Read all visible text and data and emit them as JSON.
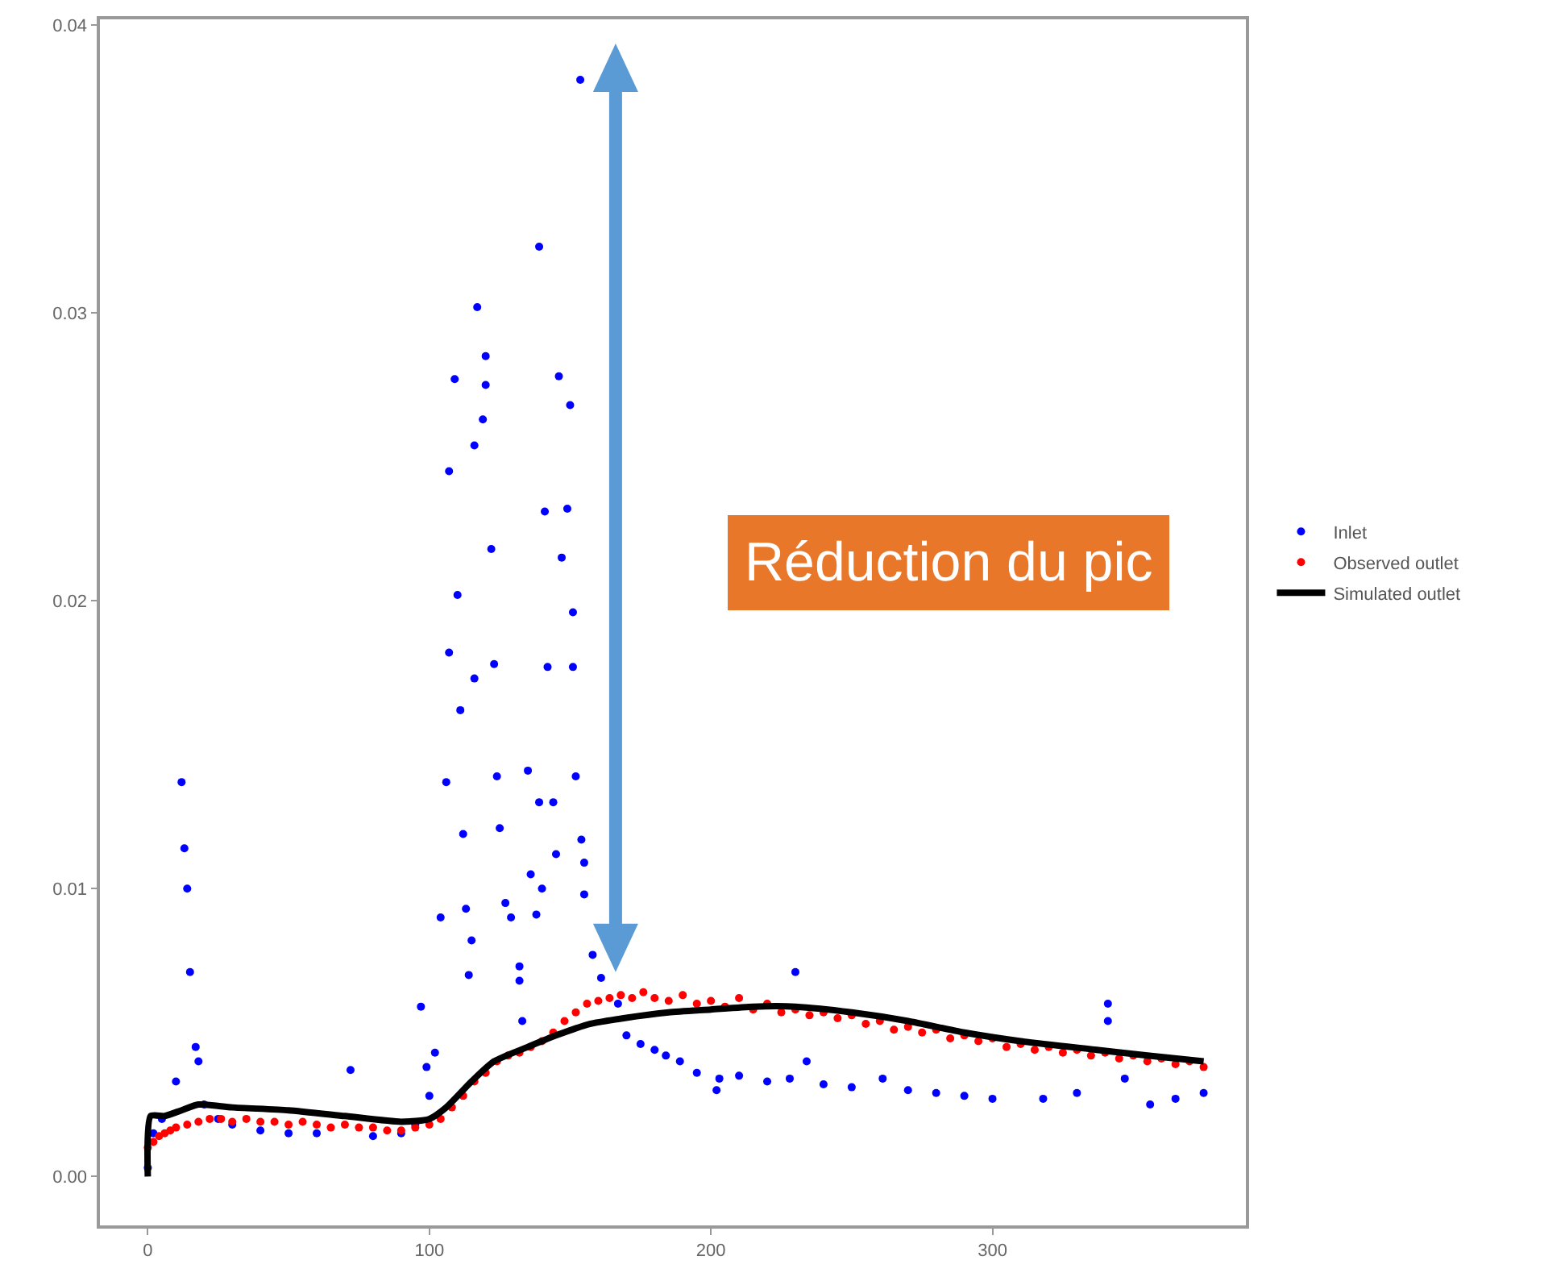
{
  "chart_data": {
    "type": "scatter",
    "annotations": [
      "Réduction du pic"
    ],
    "xlim": [
      -17,
      390
    ],
    "xticks": [
      0,
      100,
      200,
      300
    ],
    "ylim": [
      -0.0017,
      0.0402
    ],
    "yticks": [
      {
        "value": 0,
        "label": "0.00"
      },
      {
        "value": 0.01,
        "label": "0.01"
      },
      {
        "value": 0.02,
        "label": "0.02"
      },
      {
        "value": 0.03,
        "label": "0.03"
      },
      {
        "value": 0.04,
        "label": "0.04"
      }
    ],
    "grid": false,
    "legend": "right",
    "series": [
      {
        "name": "Inlet",
        "type": "scatter",
        "marker": "circle",
        "color": "#0000ff",
        "x": [
          0,
          2,
          5,
          10,
          12,
          13,
          14,
          15,
          17,
          18,
          20,
          25,
          30,
          40,
          50,
          60,
          72,
          80,
          90,
          95,
          97,
          99,
          100,
          102,
          104,
          106,
          107,
          107,
          109,
          110,
          111,
          112,
          113,
          114,
          115,
          116,
          116,
          117,
          119,
          120,
          120,
          122,
          123,
          124,
          125,
          127,
          129,
          132,
          132,
          133,
          135,
          136,
          138,
          139,
          139,
          140,
          141,
          142,
          144,
          145,
          146,
          147,
          149,
          150,
          151,
          151,
          152,
          153.6,
          154,
          155,
          155,
          158,
          161,
          167,
          170,
          175,
          180,
          184,
          189,
          195,
          202,
          203,
          210,
          220,
          228,
          230,
          234,
          240,
          250,
          261,
          270,
          280,
          290,
          300,
          318,
          330,
          341,
          341,
          347,
          356,
          365,
          375
        ],
        "values": [
          0.0003,
          0.0015,
          0.002,
          0.0033,
          0.0137,
          0.0114,
          0.01,
          0.0071,
          0.0045,
          0.004,
          0.0025,
          0.002,
          0.0018,
          0.0016,
          0.0015,
          0.0015,
          0.0037,
          0.0014,
          0.0015,
          0.0018,
          0.0059,
          0.0038,
          0.0028,
          0.0043,
          0.009,
          0.0137,
          0.0182,
          0.0245,
          0.0277,
          0.0202,
          0.0162,
          0.0119,
          0.0093,
          0.007,
          0.0082,
          0.0254,
          0.0173,
          0.0302,
          0.0263,
          0.0285,
          0.0275,
          0.0218,
          0.0178,
          0.0139,
          0.0121,
          0.0095,
          0.009,
          0.0073,
          0.0068,
          0.0054,
          0.0141,
          0.0105,
          0.0091,
          0.0323,
          0.013,
          0.01,
          0.0231,
          0.0177,
          0.013,
          0.0112,
          0.0278,
          0.0215,
          0.0232,
          0.0268,
          0.0196,
          0.0177,
          0.0139,
          0.0381,
          0.0117,
          0.0109,
          0.0098,
          0.0077,
          0.0069,
          0.006,
          0.0049,
          0.0046,
          0.0044,
          0.0042,
          0.004,
          0.0036,
          0.003,
          0.0034,
          0.0035,
          0.0033,
          0.0034,
          0.0071,
          0.004,
          0.0032,
          0.0031,
          0.0034,
          0.003,
          0.0029,
          0.0028,
          0.0027,
          0.0027,
          0.0029,
          0.006,
          0.0054,
          0.0034,
          0.0025,
          0.0027,
          0.0029
        ]
      },
      {
        "name": "Observed outlet",
        "type": "scatter",
        "marker": "circle",
        "color": "#ff0000",
        "x": [
          0,
          2,
          4,
          6,
          8,
          10,
          14,
          18,
          22,
          26,
          30,
          35,
          40,
          45,
          50,
          55,
          60,
          65,
          70,
          75,
          80,
          85,
          90,
          95,
          100,
          104,
          108,
          112,
          116,
          120,
          124,
          128,
          132,
          136,
          140,
          144,
          148,
          152,
          156,
          160,
          164,
          168,
          172,
          176,
          180,
          185,
          190,
          195,
          200,
          205,
          210,
          215,
          220,
          225,
          230,
          235,
          240,
          245,
          250,
          255,
          260,
          265,
          270,
          275,
          280,
          285,
          290,
          295,
          300,
          305,
          310,
          315,
          320,
          325,
          330,
          335,
          340,
          345,
          350,
          355,
          360,
          365,
          370,
          375
        ],
        "values": [
          0.001,
          0.0012,
          0.0014,
          0.0015,
          0.0016,
          0.0017,
          0.0018,
          0.0019,
          0.002,
          0.002,
          0.0019,
          0.002,
          0.0019,
          0.0019,
          0.0018,
          0.0019,
          0.0018,
          0.0017,
          0.0018,
          0.0017,
          0.0017,
          0.0016,
          0.0016,
          0.0017,
          0.0018,
          0.002,
          0.0024,
          0.0028,
          0.0033,
          0.0036,
          0.004,
          0.0042,
          0.0043,
          0.0045,
          0.0047,
          0.005,
          0.0054,
          0.0057,
          0.006,
          0.0061,
          0.0062,
          0.0063,
          0.0062,
          0.0064,
          0.0062,
          0.0061,
          0.0063,
          0.006,
          0.0061,
          0.0059,
          0.0062,
          0.0058,
          0.006,
          0.0057,
          0.0058,
          0.0056,
          0.0057,
          0.0055,
          0.0056,
          0.0053,
          0.0054,
          0.0051,
          0.0052,
          0.005,
          0.0051,
          0.0048,
          0.0049,
          0.0047,
          0.0048,
          0.0045,
          0.0046,
          0.0044,
          0.0045,
          0.0043,
          0.0044,
          0.0042,
          0.0043,
          0.0041,
          0.0042,
          0.004,
          0.0041,
          0.0039,
          0.004,
          0.0038
        ]
      },
      {
        "name": "Simulated outlet",
        "type": "line",
        "color": "#000000",
        "x": [
          0,
          1,
          6,
          12,
          18,
          30,
          50,
          70,
          90,
          100,
          106,
          115,
          123,
          135,
          145,
          157,
          169,
          185,
          200,
          215,
          230,
          250,
          270,
          290,
          310,
          337,
          355,
          375
        ],
        "values": [
          0.0,
          0.0021,
          0.0021,
          0.0023,
          0.0025,
          0.0024,
          0.0023,
          0.0021,
          0.0019,
          0.002,
          0.0024,
          0.0033,
          0.004,
          0.0045,
          0.0049,
          0.0053,
          0.0055,
          0.0057,
          0.0058,
          0.0059,
          0.0059,
          0.0057,
          0.0054,
          0.005,
          0.0047,
          0.0044,
          0.0042,
          0.004
        ]
      }
    ]
  }
}
